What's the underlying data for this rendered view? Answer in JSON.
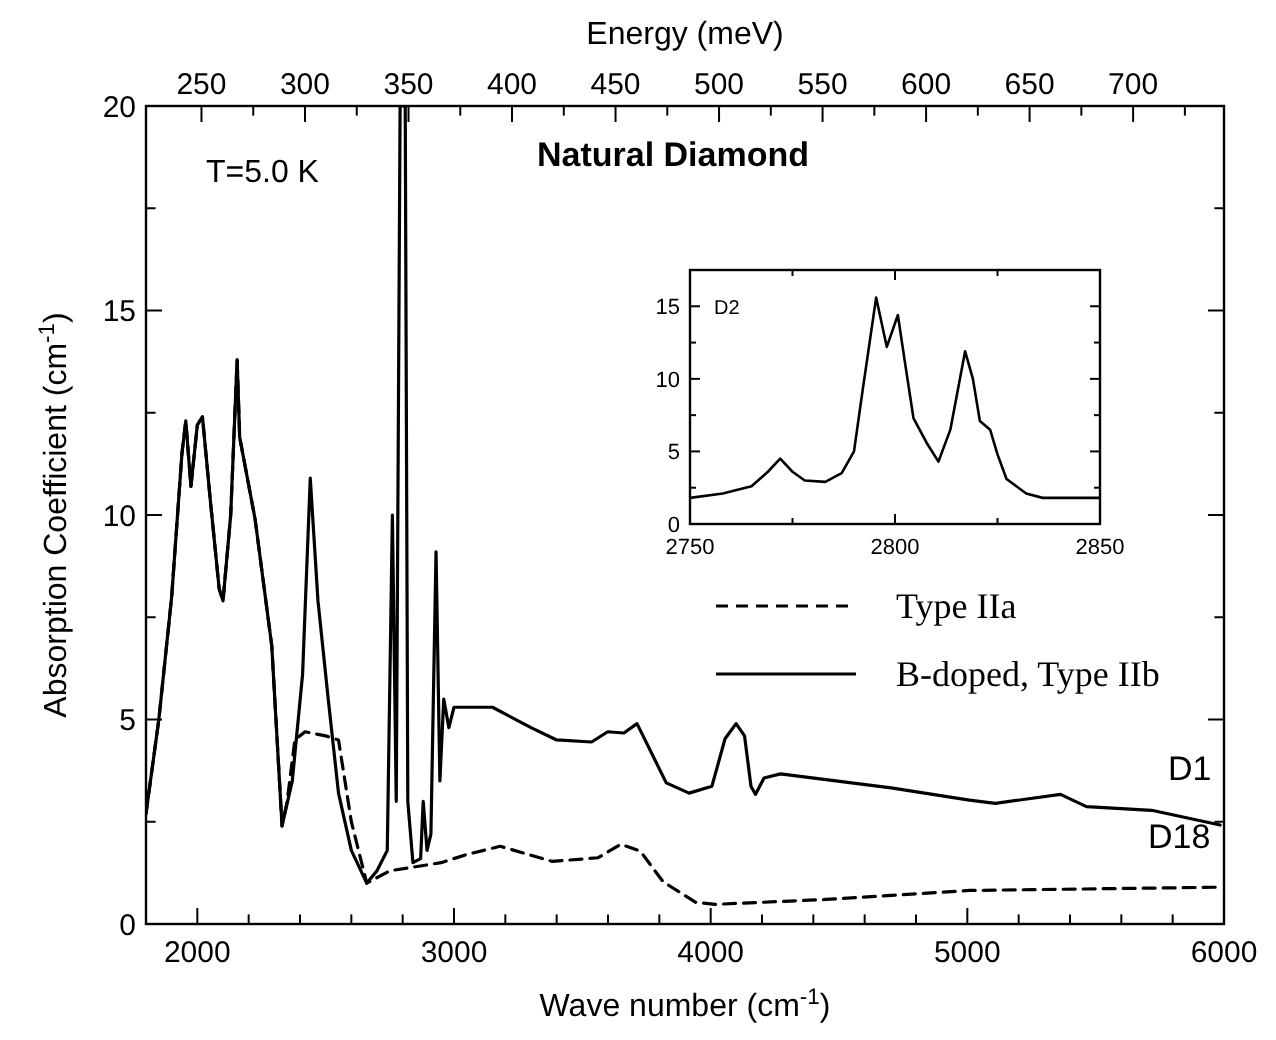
{
  "chart_data": [
    {
      "type": "line",
      "title": "Natural Diamond",
      "xlabel": "Wave number (cm$^{-1}$)",
      "ylabel": "Absorption Coefficient (cm$^{-1}$)",
      "x2label": "Energy (meV)",
      "xlim": [
        1800,
        6000
      ],
      "xticks": [
        {
          "value": 2000,
          "label": "2000"
        },
        {
          "value": 2200,
          "label": null
        },
        {
          "value": 2400,
          "label": null
        },
        {
          "value": 2600,
          "label": null
        },
        {
          "value": 2800,
          "label": null
        },
        {
          "value": 3000,
          "label": "3000"
        },
        {
          "value": 3200,
          "label": null
        },
        {
          "value": 3400,
          "label": null
        },
        {
          "value": 3600,
          "label": null
        },
        {
          "value": 3800,
          "label": null
        },
        {
          "value": 4000,
          "label": "4000"
        },
        {
          "value": 4200,
          "label": null
        },
        {
          "value": 4400,
          "label": null
        },
        {
          "value": 4600,
          "label": null
        },
        {
          "value": 4800,
          "label": null
        },
        {
          "value": 5000,
          "label": "5000"
        },
        {
          "value": 5200,
          "label": null
        },
        {
          "value": 5400,
          "label": null
        },
        {
          "value": 5600,
          "label": null
        },
        {
          "value": 5800,
          "label": null
        },
        {
          "value": 6000,
          "label": "6000"
        }
      ],
      "ylim": [
        0,
        20
      ],
      "yticks": [
        0,
        {
          "value": 2.5,
          "label": null
        },
        5,
        {
          "value": 7.5,
          "label": null
        },
        10,
        {
          "value": 12.5,
          "label": null
        },
        15,
        {
          "value": 17.5,
          "label": null
        },
        20
      ],
      "x2lim": [
        223.2,
        743.9
      ],
      "x2ticks": [
        250,
        {
          "value": 275,
          "label": null
        },
        300,
        {
          "value": 325,
          "label": null
        },
        350,
        {
          "value": 375,
          "label": null
        },
        400,
        {
          "value": 425,
          "label": null
        },
        450,
        {
          "value": 475,
          "label": null
        },
        500,
        {
          "value": 525,
          "label": null
        },
        550,
        {
          "value": 575,
          "label": null
        },
        600,
        {
          "value": 625,
          "label": null
        },
        650,
        {
          "value": 675,
          "label": null
        },
        700,
        {
          "value": 725,
          "label": null
        }
      ],
      "legend": "right",
      "grid": false,
      "annotations": [
        "T=5.0 K",
        "D1",
        "D18"
      ],
      "series": [
        {
          "name": "Type IIa",
          "color": "#000000",
          "line_style": "dashed",
          "x": [
            1800,
            1850,
            1900,
            1940,
            1955,
            1975,
            2000,
            2020,
            2050,
            2085,
            2100,
            2130,
            2155,
            2165,
            2225,
            2290,
            2330,
            2350,
            2380,
            2420,
            2500,
            2550,
            2600,
            2660,
            2750,
            2850,
            2950,
            3050,
            3180,
            3383,
            3561,
            3650,
            3726,
            3815,
            3942,
            4018,
            4449,
            5008,
            5985
          ],
          "values": [
            2.7,
            5,
            8,
            11.5,
            12.3,
            10.7,
            12.2,
            12.4,
            10.4,
            8.2,
            7.9,
            10,
            13.8,
            11.9,
            9.9,
            6.8,
            2.4,
            3.0,
            4.5,
            4.7,
            4.6,
            4.5,
            2.5,
            1.0,
            1.3,
            1.4,
            1.5,
            1.7,
            1.9,
            1.53,
            1.62,
            1.95,
            1.78,
            1.03,
            0.53,
            0.48,
            0.6,
            0.82,
            0.9
          ]
        },
        {
          "name": "B-doped, Type IIb",
          "color": "#000000",
          "line_style": "solid",
          "x": [
            1800,
            1850,
            1900,
            1940,
            1955,
            1975,
            2000,
            2020,
            2050,
            2085,
            2100,
            2130,
            2155,
            2165,
            2225,
            2290,
            2330,
            2370,
            2410,
            2440,
            2470,
            2510,
            2550,
            2600,
            2660,
            2700,
            2740,
            2760,
            2775,
            2790,
            2810,
            2820,
            2840,
            2870,
            2880,
            2895,
            2910,
            2930,
            2945,
            2960,
            2980,
            3000,
            3150,
            3300,
            3400,
            3536,
            3599,
            3662,
            3713,
            3827,
            3916,
            4005,
            4056,
            4099,
            4132,
            4157,
            4175,
            4208,
            4272,
            4703,
            5008,
            5109,
            5363,
            5464,
            5718,
            5985
          ],
          "values": [
            2.7,
            5,
            8,
            11.5,
            12.3,
            10.7,
            12.2,
            12.4,
            10.4,
            8.2,
            7.9,
            10,
            13.8,
            11.9,
            9.9,
            6.8,
            2.4,
            3.5,
            6.1,
            10.9,
            7.9,
            5.5,
            3.2,
            1.8,
            1.0,
            1.3,
            1.8,
            10.0,
            3.0,
            20,
            20,
            3.0,
            1.5,
            1.6,
            3.0,
            1.8,
            2.2,
            9.1,
            3.5,
            5.5,
            4.8,
            5.3,
            5.3,
            4.8,
            4.5,
            4.45,
            4.7,
            4.67,
            4.9,
            3.45,
            3.2,
            3.37,
            4.53,
            4.9,
            4.6,
            3.37,
            3.17,
            3.57,
            3.67,
            3.33,
            3.03,
            2.95,
            3.17,
            2.87,
            2.78,
            2.42
          ]
        }
      ]
    },
    {
      "type": "line",
      "xlim": [
        2750,
        2850
      ],
      "xticks": [
        2750,
        {
          "value": 2775,
          "label": null
        },
        2800,
        {
          "value": 2825,
          "label": null
        },
        2850
      ],
      "ylim": [
        0,
        17.5
      ],
      "yticks": [
        0,
        {
          "value": 2.5,
          "label": null
        },
        5,
        {
          "value": 7.5,
          "label": null
        },
        10,
        {
          "value": 12.5,
          "label": null
        },
        15
      ],
      "annotations": [
        "D2"
      ],
      "series": [
        {
          "color": "#000000",
          "line_style": "solid",
          "x": [
            2750,
            2758,
            2765,
            2769,
            2772,
            2775,
            2778,
            2783,
            2787,
            2790,
            2792,
            2795.4,
            2798,
            2800.7,
            2802.5,
            2804.5,
            2807.7,
            2810.6,
            2813.5,
            2817.1,
            2819,
            2820.7,
            2823.2,
            2825,
            2827.2,
            2832,
            2836,
            2850
          ],
          "values": [
            1.8,
            2.1,
            2.6,
            3.6,
            4.5,
            3.6,
            3.0,
            2.9,
            3.5,
            5.0,
            9.0,
            15.6,
            12.2,
            14.4,
            11.0,
            7.3,
            5.6,
            4.3,
            6.5,
            11.9,
            10.0,
            7.1,
            6.5,
            4.8,
            3.1,
            2.1,
            1.8,
            1.8
          ]
        }
      ]
    }
  ]
}
